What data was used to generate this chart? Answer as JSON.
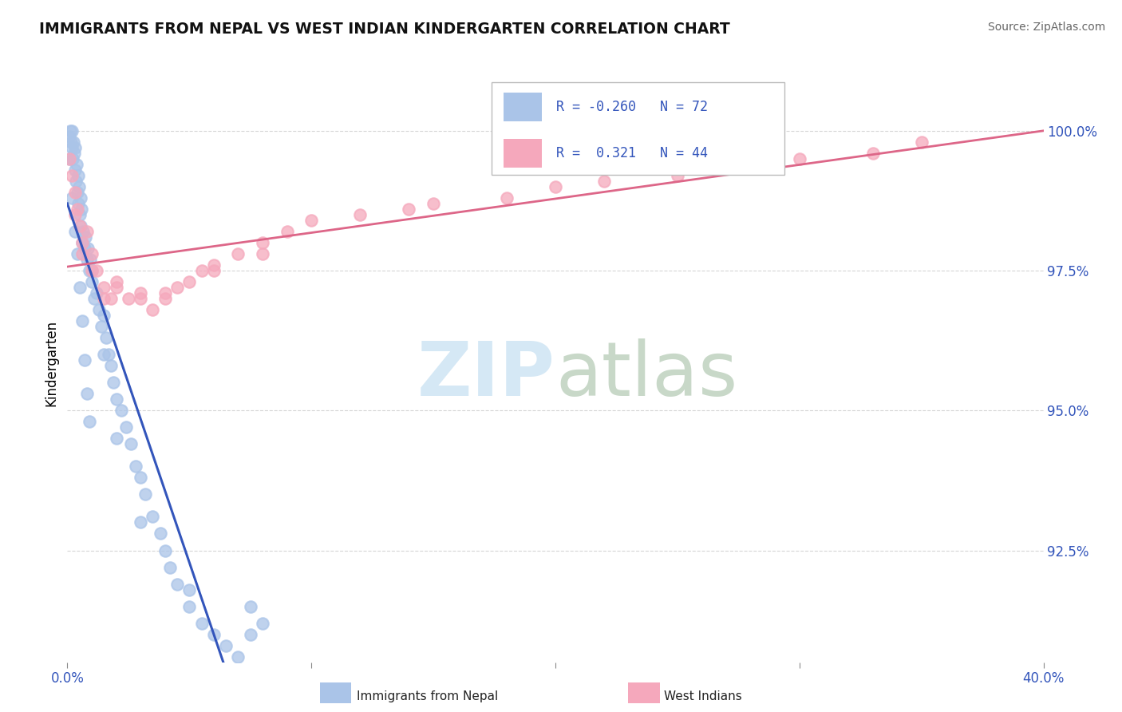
{
  "title": "IMMIGRANTS FROM NEPAL VS WEST INDIAN KINDERGARTEN CORRELATION CHART",
  "source": "Source: ZipAtlas.com",
  "xlabel_nepal": "Immigrants from Nepal",
  "xlabel_west": "West Indians",
  "ylabel": "Kindergarten",
  "xlim": [
    0.0,
    40.0
  ],
  "ylim": [
    90.5,
    101.2
  ],
  "yticks": [
    92.5,
    95.0,
    97.5,
    100.0
  ],
  "xticks": [
    0.0,
    10.0,
    20.0,
    30.0,
    40.0
  ],
  "R_nepal": -0.26,
  "N_nepal": 72,
  "R_west": 0.321,
  "N_west": 44,
  "nepal_color": "#aac4e8",
  "west_color": "#f5a8bc",
  "nepal_line_color": "#3355bb",
  "nepal_dash_color": "#99bbdd",
  "west_line_color": "#dd6688",
  "watermark_color": "#d5e8f5",
  "nepal_x": [
    0.08,
    0.12,
    0.15,
    0.18,
    0.2,
    0.22,
    0.25,
    0.28,
    0.3,
    0.33,
    0.35,
    0.38,
    0.4,
    0.43,
    0.45,
    0.48,
    0.5,
    0.53,
    0.55,
    0.58,
    0.6,
    0.65,
    0.7,
    0.75,
    0.8,
    0.85,
    0.9,
    0.95,
    1.0,
    1.1,
    1.2,
    1.3,
    1.4,
    1.5,
    1.6,
    1.7,
    1.8,
    1.9,
    2.0,
    2.2,
    2.4,
    2.6,
    2.8,
    3.0,
    3.2,
    3.5,
    3.8,
    4.0,
    4.2,
    4.5,
    5.0,
    5.5,
    6.0,
    6.5,
    7.0,
    7.5,
    8.0,
    0.1,
    0.2,
    0.3,
    0.4,
    0.5,
    0.6,
    0.7,
    0.8,
    0.9,
    1.0,
    1.5,
    2.0,
    3.0,
    5.0,
    7.5
  ],
  "nepal_y": [
    99.9,
    100.0,
    99.8,
    99.7,
    100.0,
    99.5,
    99.8,
    99.6,
    99.3,
    99.7,
    99.1,
    99.4,
    98.9,
    99.2,
    98.7,
    99.0,
    98.5,
    98.8,
    98.3,
    98.6,
    98.0,
    98.2,
    97.9,
    98.1,
    97.7,
    97.9,
    97.5,
    97.7,
    97.3,
    97.0,
    97.1,
    96.8,
    96.5,
    96.7,
    96.3,
    96.0,
    95.8,
    95.5,
    95.2,
    95.0,
    94.7,
    94.4,
    94.0,
    93.8,
    93.5,
    93.1,
    92.8,
    92.5,
    92.2,
    91.9,
    91.5,
    91.2,
    91.0,
    90.8,
    90.6,
    91.5,
    91.2,
    99.5,
    98.8,
    98.2,
    97.8,
    97.2,
    96.6,
    95.9,
    95.3,
    94.8,
    97.5,
    96.0,
    94.5,
    93.0,
    91.8,
    91.0
  ],
  "west_x": [
    0.1,
    0.2,
    0.3,
    0.4,
    0.5,
    0.6,
    0.8,
    1.0,
    1.2,
    1.5,
    1.8,
    2.0,
    2.5,
    3.0,
    3.5,
    4.0,
    4.5,
    5.0,
    5.5,
    6.0,
    7.0,
    8.0,
    9.0,
    10.0,
    12.0,
    14.0,
    15.0,
    18.0,
    20.0,
    22.0,
    25.0,
    28.0,
    30.0,
    35.0,
    0.3,
    0.6,
    1.0,
    1.5,
    2.0,
    3.0,
    4.0,
    6.0,
    8.0,
    33.0
  ],
  "west_y": [
    99.5,
    99.2,
    98.9,
    98.6,
    98.3,
    98.0,
    98.2,
    97.8,
    97.5,
    97.2,
    97.0,
    97.3,
    97.0,
    97.1,
    96.8,
    97.0,
    97.2,
    97.3,
    97.5,
    97.6,
    97.8,
    98.0,
    98.2,
    98.4,
    98.5,
    98.6,
    98.7,
    98.8,
    99.0,
    99.1,
    99.2,
    99.4,
    99.5,
    99.8,
    98.5,
    97.8,
    97.5,
    97.0,
    97.2,
    97.0,
    97.1,
    97.5,
    97.8,
    99.6
  ]
}
